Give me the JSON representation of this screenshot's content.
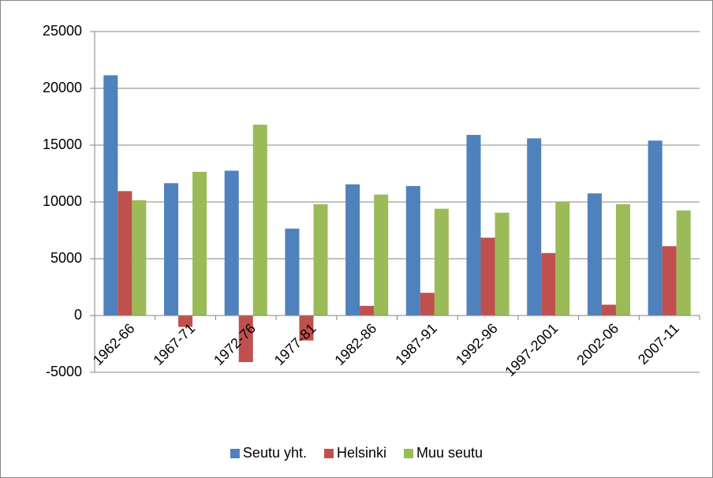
{
  "chart_data": {
    "type": "bar",
    "categories": [
      "1962-66",
      "1967-71",
      "1972-76",
      "1977-81",
      "1982-86",
      "1987-91",
      "1992-96",
      "1997-2001",
      "2002-06",
      "2007-11"
    ],
    "series": [
      {
        "name": "Seutu yht.",
        "color": "#4f81bd",
        "values": [
          21150,
          11650,
          12750,
          7650,
          11550,
          11400,
          15900,
          15600,
          10750,
          15400
        ]
      },
      {
        "name": "Helsinki",
        "color": "#c0504d",
        "values": [
          10950,
          -1000,
          -4100,
          -2200,
          850,
          2000,
          6850,
          5500,
          950,
          6100
        ]
      },
      {
        "name": "Muu seutu",
        "color": "#9bbb59",
        "values": [
          10150,
          12650,
          16800,
          9800,
          10650,
          9400,
          9050,
          10000,
          9800,
          9250
        ]
      }
    ],
    "ylim": [
      -5000,
      25000
    ],
    "yticks": [
      -5000,
      0,
      5000,
      10000,
      15000,
      20000,
      25000
    ],
    "grid": true,
    "legend": "bottom"
  }
}
